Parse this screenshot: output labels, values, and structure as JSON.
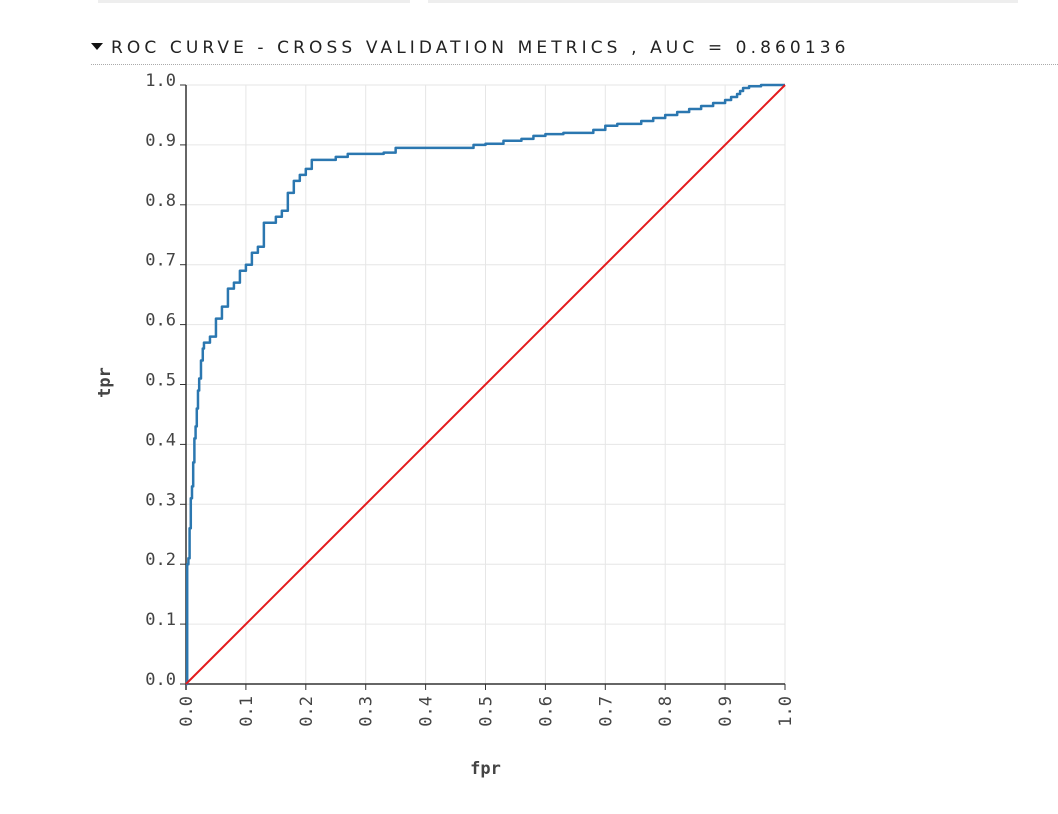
{
  "header": {
    "title": "ROC CURVE - CROSS VALIDATION METRICS , AUC = 0.860136",
    "caret_icon": "caret-down-icon"
  },
  "chart_data": {
    "type": "line",
    "title": "ROC CURVE - CROSS VALIDATION METRICS , AUC = 0.860136",
    "xlabel": "fpr",
    "ylabel": "tpr",
    "xlim": [
      0,
      1
    ],
    "ylim": [
      0,
      1
    ],
    "grid": true,
    "x_ticks": [
      "0.0",
      "0.1",
      "0.2",
      "0.3",
      "0.4",
      "0.5",
      "0.6",
      "0.7",
      "0.8",
      "0.9",
      "1.0"
    ],
    "y_ticks": [
      "0.0",
      "0.1",
      "0.2",
      "0.3",
      "0.4",
      "0.5",
      "0.6",
      "0.7",
      "0.8",
      "0.9",
      "1.0"
    ],
    "series": [
      {
        "color": "#2b77b0",
        "x": [
          0,
          0.002,
          0.004,
          0.006,
          0.008,
          0.01,
          0.012,
          0.014,
          0.016,
          0.018,
          0.02,
          0.022,
          0.025,
          0.028,
          0.03,
          0.035,
          0.04,
          0.05,
          0.06,
          0.07,
          0.08,
          0.09,
          0.1,
          0.11,
          0.12,
          0.13,
          0.14,
          0.15,
          0.16,
          0.17,
          0.18,
          0.19,
          0.2,
          0.21,
          0.22,
          0.23,
          0.24,
          0.25,
          0.27,
          0.29,
          0.31,
          0.33,
          0.35,
          0.37,
          0.4,
          0.45,
          0.48,
          0.5,
          0.53,
          0.56,
          0.58,
          0.6,
          0.63,
          0.66,
          0.68,
          0.7,
          0.72,
          0.74,
          0.76,
          0.78,
          0.8,
          0.82,
          0.84,
          0.86,
          0.88,
          0.9,
          0.91,
          0.92,
          0.925,
          0.93,
          0.94,
          0.96,
          0.98,
          1.0
        ],
        "y": [
          0,
          0.2,
          0.21,
          0.26,
          0.31,
          0.33,
          0.37,
          0.41,
          0.43,
          0.46,
          0.49,
          0.51,
          0.54,
          0.56,
          0.57,
          0.57,
          0.58,
          0.61,
          0.63,
          0.66,
          0.67,
          0.69,
          0.7,
          0.72,
          0.73,
          0.77,
          0.77,
          0.78,
          0.79,
          0.82,
          0.84,
          0.85,
          0.86,
          0.875,
          0.875,
          0.875,
          0.875,
          0.88,
          0.885,
          0.885,
          0.885,
          0.887,
          0.895,
          0.895,
          0.895,
          0.895,
          0.9,
          0.902,
          0.907,
          0.91,
          0.915,
          0.918,
          0.92,
          0.92,
          0.925,
          0.932,
          0.935,
          0.935,
          0.94,
          0.945,
          0.95,
          0.955,
          0.96,
          0.965,
          0.97,
          0.975,
          0.98,
          0.985,
          0.99,
          0.995,
          0.998,
          1.0,
          1.0,
          1.0
        ]
      },
      {
        "color": "#e41a1c",
        "x": [
          0,
          1
        ],
        "y": [
          0,
          1
        ]
      }
    ]
  }
}
